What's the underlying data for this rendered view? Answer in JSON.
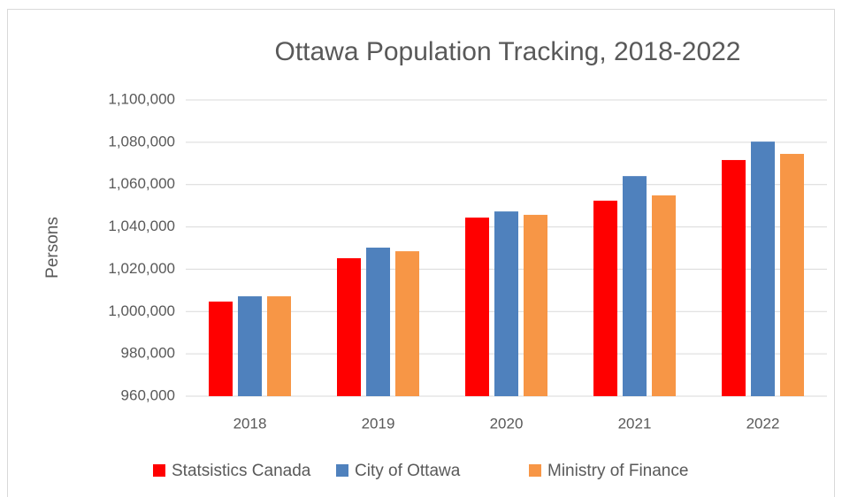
{
  "chart_data": {
    "type": "bar",
    "title": "Ottawa Population Tracking, 2018-2022",
    "y_label": "Persons",
    "categories": [
      "2018",
      "2019",
      "2020",
      "2021",
      "2022"
    ],
    "series": [
      {
        "name": "Statsistics Canada",
        "color": "#ff0000",
        "values": [
          1004700,
          1025200,
          1044400,
          1052400,
          1071600
        ]
      },
      {
        "name": "City of Ottawa",
        "color": "#4f81bd",
        "values": [
          1007200,
          1030200,
          1047300,
          1064000,
          1080300
        ]
      },
      {
        "name": "Ministry of Finance",
        "color": "#f79646",
        "values": [
          1007200,
          1028500,
          1045700,
          1054900,
          1074500
        ]
      }
    ],
    "ylim": [
      960000,
      1100000
    ],
    "yticks": [
      {
        "value": 960000,
        "label": "960,000"
      },
      {
        "value": 980000,
        "label": "980,000"
      },
      {
        "value": 1000000,
        "label": "1,000,000"
      },
      {
        "value": 1020000,
        "label": "1,020,000"
      },
      {
        "value": 1040000,
        "label": "1,040,000"
      },
      {
        "value": 1060000,
        "label": "1,060,000"
      },
      {
        "value": 1080000,
        "label": "1,080,000"
      },
      {
        "value": 1100000,
        "label": "1,100,000"
      }
    ],
    "grid": true,
    "legend": "bottom"
  }
}
